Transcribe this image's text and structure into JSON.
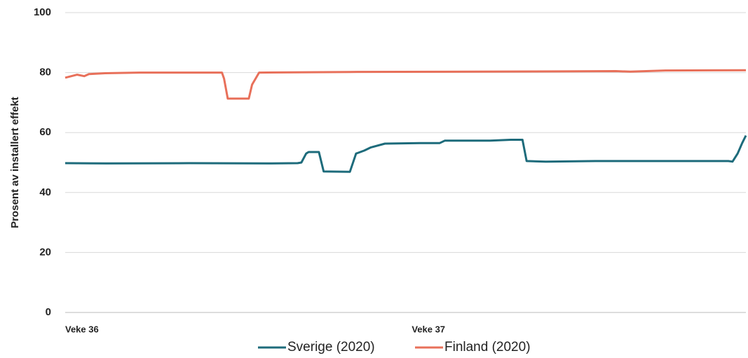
{
  "chart_data": {
    "type": "line",
    "y_label": "Prosent av installert effekt",
    "xlim": [
      0,
      330
    ],
    "xticks": [
      {
        "value": 0,
        "label": "Veke 36"
      },
      {
        "value": 168,
        "label": "Veke 37"
      }
    ],
    "ylim": [
      0,
      100
    ],
    "yticks": [
      0,
      20,
      40,
      60,
      80,
      100
    ],
    "grid": true,
    "legend": "bottom",
    "series": [
      {
        "name": "Sverige (2020)",
        "color": "#1d6b7b",
        "x": [
          0,
          20,
          60,
          100,
          112.7,
          114.5,
          116.8,
          118,
          123,
          125.3,
          138,
          141,
          145,
          148,
          155,
          172,
          181.6,
          184,
          206,
          216,
          221.7,
          223.7,
          233,
          257,
          321.5,
          323.5,
          326,
          328.2,
          330
        ],
        "values": [
          49.8,
          49.7,
          49.8,
          49.7,
          49.8,
          50,
          53,
          53.5,
          53.5,
          47,
          46.9,
          53,
          54,
          55,
          56.3,
          56.5,
          56.5,
          57.3,
          57.3,
          57.6,
          57.6,
          50.5,
          50.3,
          50.5,
          50.5,
          50.3,
          53,
          56.5,
          59
        ]
      },
      {
        "name": "Finland (2020)",
        "color": "#e8705a",
        "x": [
          0,
          5.8,
          9.2,
          11.5,
          19.4,
          36,
          76,
          77,
          78.8,
          89,
          90.6,
          94,
          138,
          240,
          267,
          274,
          291,
          330
        ],
        "values": [
          78.3,
          79.3,
          78.8,
          79.5,
          79.8,
          80,
          80,
          78,
          71.3,
          71.3,
          76,
          80,
          80.2,
          80.4,
          80.5,
          80.3,
          80.7,
          80.8
        ]
      }
    ]
  }
}
